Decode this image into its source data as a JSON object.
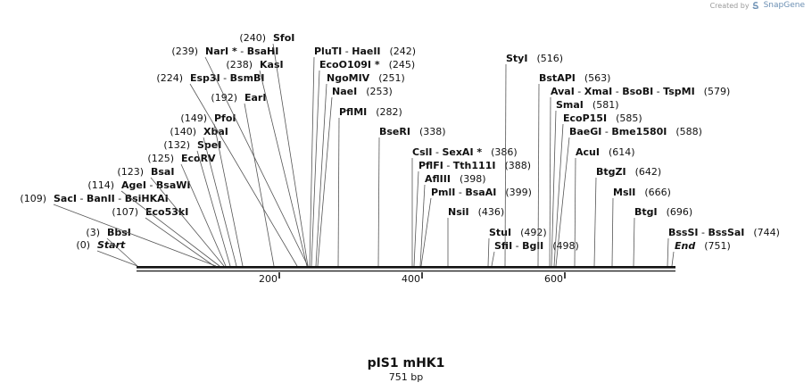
{
  "credit": {
    "prefix": "Created by",
    "brand": "SnapGene",
    "logo_icon": "snapgene-logo-icon"
  },
  "title": "pIS1 mHK1",
  "length_label": "751 bp",
  "scale": {
    "ticks": [
      200,
      400,
      600
    ],
    "total_bp": 751
  },
  "sites": [
    {
      "name": "Start",
      "pos": "(0)"
    },
    {
      "name": "BbsI",
      "pos": "(3)"
    },
    {
      "name": "Eco53kI",
      "pos": "(107)"
    },
    {
      "name": "SacI",
      "pos": "(109)",
      "aliases": [
        "BanII",
        "BsiHKAI"
      ]
    },
    {
      "name": "AgeI",
      "pos": "(114)",
      "aliases": [
        "BsaWI"
      ]
    },
    {
      "name": "BsaI",
      "pos": "(123)"
    },
    {
      "name": "EcoRV",
      "pos": "(125)"
    },
    {
      "name": "SpeI",
      "pos": "(132)"
    },
    {
      "name": "XbaI",
      "pos": "(140)"
    },
    {
      "name": "PfoI",
      "pos": "(149)"
    },
    {
      "name": "EarI",
      "pos": "(192)"
    },
    {
      "name": "Esp3I",
      "pos": "(224)",
      "aliases": [
        "BsmBI"
      ]
    },
    {
      "name": "KasI",
      "pos": "(238)"
    },
    {
      "name": "NarI *",
      "pos": "(239)",
      "aliases": [
        "BsaHI"
      ]
    },
    {
      "name": "SfoI",
      "pos": "(240)"
    },
    {
      "name": "PluTI",
      "pos": "(242)",
      "aliases": [
        "HaeII"
      ]
    },
    {
      "name": "EcoO109I *",
      "pos": "(245)"
    },
    {
      "name": "NgoMIV",
      "pos": "(251)"
    },
    {
      "name": "NaeI",
      "pos": "(253)"
    },
    {
      "name": "PflMI",
      "pos": "(282)"
    },
    {
      "name": "BseRI",
      "pos": "(338)"
    },
    {
      "name": "CslI",
      "pos": "(386)",
      "aliases": [
        "SexAI *"
      ]
    },
    {
      "name": "PflFI",
      "pos": "(388)",
      "aliases": [
        "Tth111I"
      ]
    },
    {
      "name": "AflIII",
      "pos": "(398)"
    },
    {
      "name": "PmlI",
      "pos": "(399)",
      "aliases": [
        "BsaAI"
      ]
    },
    {
      "name": "NsiI",
      "pos": "(436)"
    },
    {
      "name": "StuI",
      "pos": "(492)"
    },
    {
      "name": "SfiI",
      "pos": "(498)",
      "aliases": [
        "BglI"
      ]
    },
    {
      "name": "StyI",
      "pos": "(516)"
    },
    {
      "name": "BstAPI",
      "pos": "(563)"
    },
    {
      "name": "AvaI",
      "pos": "(579)",
      "aliases": [
        "XmaI",
        "BsoBI",
        "TspMI"
      ]
    },
    {
      "name": "SmaI",
      "pos": "(581)"
    },
    {
      "name": "EcoP15I",
      "pos": "(585)"
    },
    {
      "name": "BaeGI",
      "pos": "(588)",
      "aliases": [
        "Bme1580I"
      ]
    },
    {
      "name": "AcuI",
      "pos": "(614)"
    },
    {
      "name": "BtgZI",
      "pos": "(642)"
    },
    {
      "name": "MslI",
      "pos": "(666)"
    },
    {
      "name": "BtgI",
      "pos": "(696)"
    },
    {
      "name": "BssSI",
      "pos": "(744)",
      "aliases": [
        "BssSaI"
      ]
    },
    {
      "name": "End",
      "pos": "(751)"
    }
  ]
}
